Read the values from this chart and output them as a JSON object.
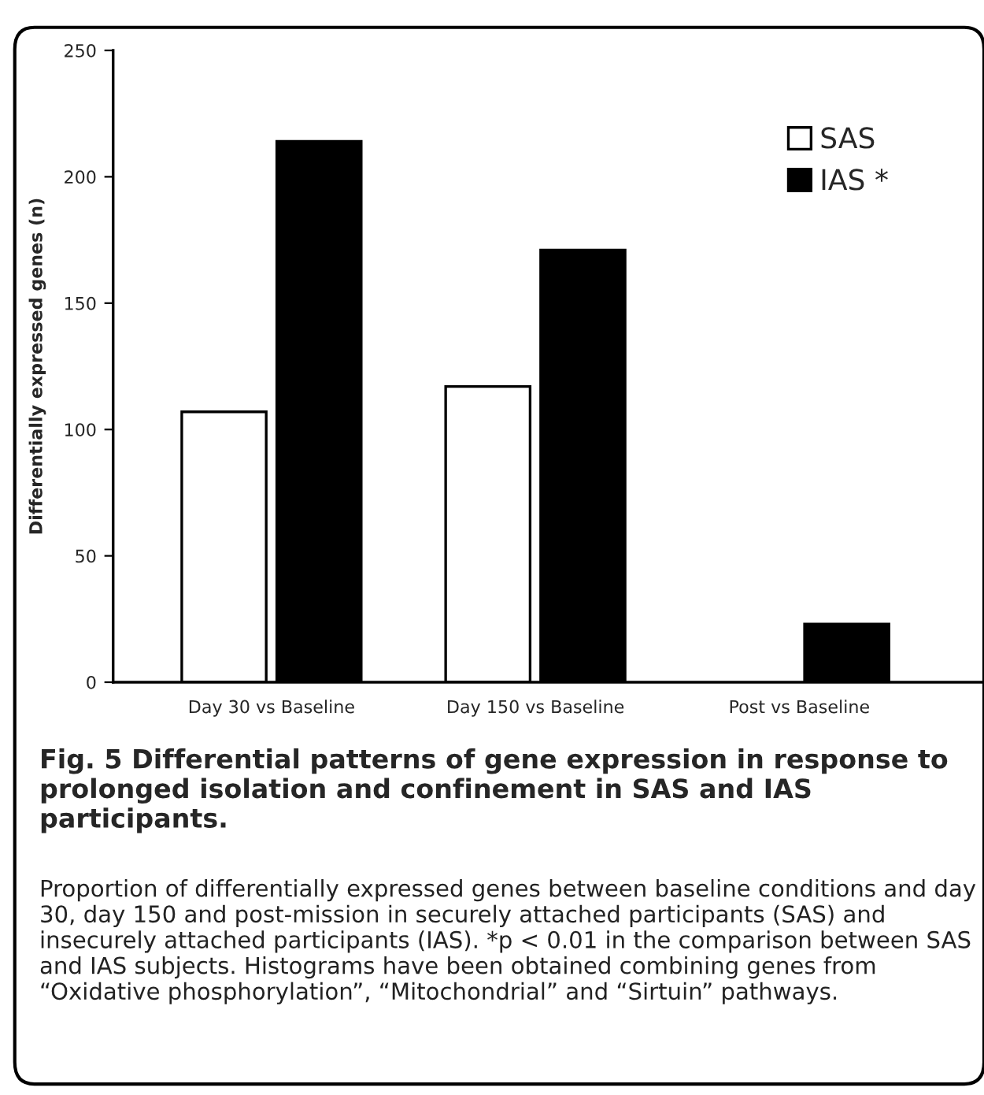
{
  "chart_data": {
    "type": "bar",
    "title": "Fig. 5 Differential patterns of gene expression in response to prolonged isolation and confinement in SAS and IAS participants.",
    "ylabel": "Differentially expressed genes (n)",
    "categories": [
      "Day 30 vs Baseline",
      "Day 150 vs Baseline",
      "Post vs Baseline"
    ],
    "series": [
      {
        "name": "SAS",
        "color": "#ffffff",
        "values": [
          107,
          117,
          null
        ]
      },
      {
        "name": "IAS *",
        "color": "#000000",
        "values": [
          214,
          171,
          23
        ]
      }
    ],
    "ylim": [
      0,
      250
    ],
    "yticks": [
      0,
      50,
      100,
      150,
      200,
      250
    ],
    "grid": false,
    "legend": "top right",
    "annotations": [
      "Proportion of differentially expressed genes between baseline conditions and day 30, day 150 and post-mission in securely attached participants (SAS) and insecurely attached participants (IAS). *p < 0.01 in the comparison between SAS and IAS subjects. Histograms have been obtained combining genes from “Oxidative phosphorylation”, “Mitochondrial” and “Sirtuin” pathways."
    ]
  }
}
